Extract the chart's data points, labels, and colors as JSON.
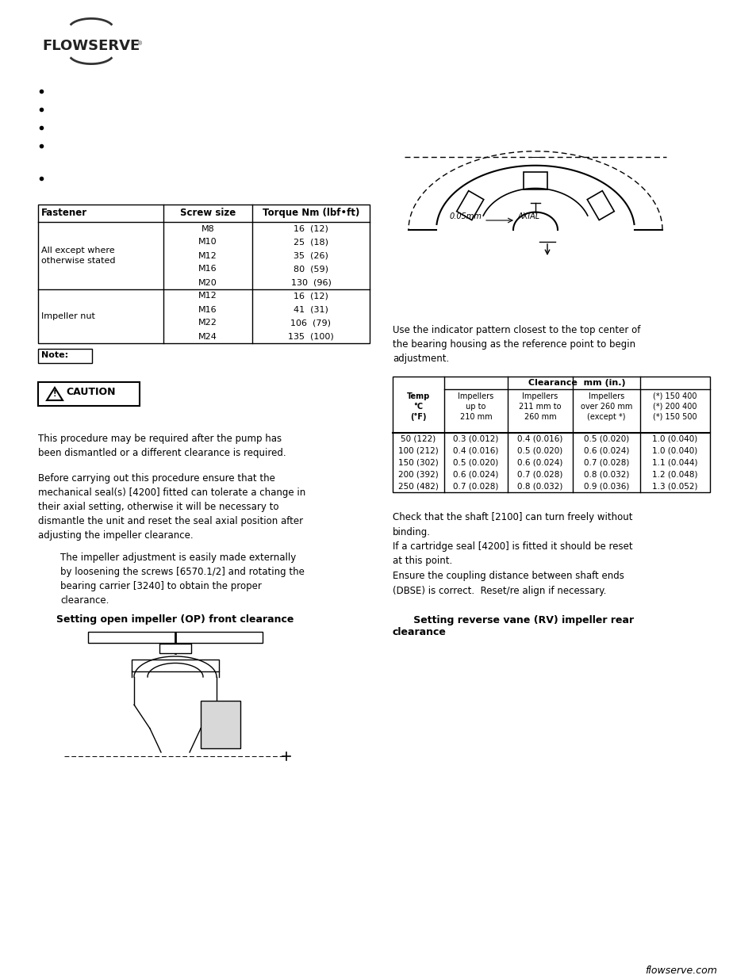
{
  "bg_color": "#ffffff",
  "table1_headers": [
    "Fastener",
    "Screw size",
    "Torque Nm (lbf•ft)"
  ],
  "table1_g1_label": "All except where\notherwise stated",
  "table1_g1_sizes": [
    "M8",
    "M10",
    "M12",
    "M16",
    "M20"
  ],
  "table1_g1_torques": [
    "16  (12)",
    "25  (18)",
    "35  (26)",
    "80  (59)",
    "130  (96)"
  ],
  "table1_g2_label": "Impeller nut",
  "table1_g2_sizes": [
    "M12",
    "M16",
    "M22",
    "M24"
  ],
  "table1_g2_torques": [
    "16  (12)",
    "41  (31)",
    "106  (79)",
    "135  (100)"
  ],
  "note_label": "Note:",
  "caution_label": "CAUTION",
  "text_procedure": "This procedure may be required after the pump has\nbeen dismantled or a different clearance is required.",
  "text_before": "Before carrying out this procedure ensure that the\nmechanical seal(s) [4200] fitted can tolerate a change in\ntheir axial setting, otherwise it will be necessary to\ndismantle the unit and reset the seal axial position after\nadjusting the impeller clearance.",
  "text_impeller": "The impeller adjustment is easily made externally\nby loosening the screws [6570.1/2] and rotating the\nbearing carrier [3240] to obtain the proper\nclearance.",
  "title_op": "Setting open impeller (OP) front clearance",
  "text_right_indicator": "Use the indicator pattern closest to the top center of\nthe bearing housing as the reference point to begin\nadjustment.",
  "clearance_header": "Clearance  mm (in.)",
  "clearance_col1": "Temp\n°C\n(°F)",
  "clearance_col2": "Impellers\nup to\n210 mm",
  "clearance_col3": "Impellers\n211 mm to\n260 mm",
  "clearance_col4": "Impellers\nover 260 mm\n(except *)",
  "clearance_col5": "(*) 150 400\n(*) 200 400\n(*) 150 500",
  "clearance_rows": [
    [
      "50 (122)",
      "0.3 (0.012)",
      "0.4 (0.016)",
      "0.5 (0.020)",
      "1.0 (0.040)"
    ],
    [
      "100 (212)",
      "0.4 (0.016)",
      "0.5 (0.020)",
      "0.6 (0.024)",
      "1.0 (0.040)"
    ],
    [
      "150 (302)",
      "0.5 (0.020)",
      "0.6 (0.024)",
      "0.7 (0.028)",
      "1.1 (0.044)"
    ],
    [
      "200 (392)",
      "0.6 (0.024)",
      "0.7 (0.028)",
      "0.8 (0.032)",
      "1.2 (0.048)"
    ],
    [
      "250 (482)",
      "0.7 (0.028)",
      "0.8 (0.032)",
      "0.9 (0.036)",
      "1.3 (0.052)"
    ]
  ],
  "text_check": "Check that the shaft [2100] can turn freely without\nbinding.\nIf a cartridge seal [4200] is fitted it should be reset\nat this point.\nEnsure the coupling distance between shaft ends\n(DBSE) is correct.  Reset/re align if necessary.",
  "title_rv": "      Setting reverse vane (RV) impeller rear\nclearance",
  "footer": "flowserve.com"
}
